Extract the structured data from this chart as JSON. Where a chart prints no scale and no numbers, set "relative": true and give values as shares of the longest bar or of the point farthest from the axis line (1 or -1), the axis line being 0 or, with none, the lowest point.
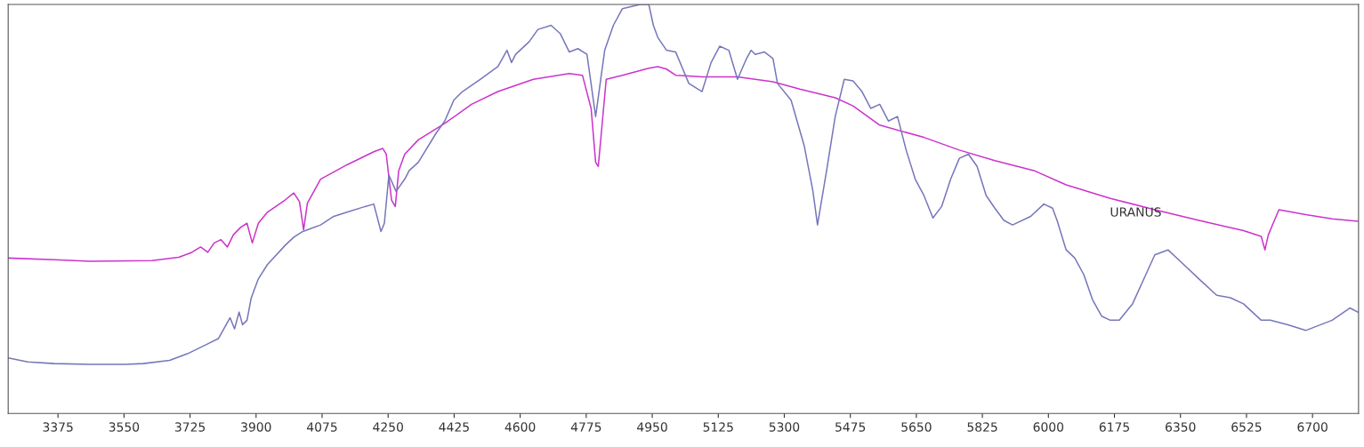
{
  "chart_data": {
    "type": "line",
    "relative": true,
    "xlim": [
      3243,
      6822
    ],
    "xticks": [
      3375,
      3550,
      3725,
      3900,
      4075,
      4250,
      4425,
      4600,
      4775,
      4950,
      5125,
      5300,
      5475,
      5650,
      5825,
      6000,
      6175,
      6350,
      6525,
      6700
    ],
    "grid": false,
    "legend": false,
    "marker": "none",
    "line_style": "solid",
    "series": [
      {
        "color": "#cc33cc",
        "x": [
          3243,
          3365,
          3459,
          3624,
          3695,
          3730,
          3753,
          3772,
          3789,
          3807,
          3824,
          3840,
          3859,
          3876,
          3890,
          3906,
          3930,
          3977,
          4000,
          4015,
          4026,
          4036,
          4071,
          4141,
          4212,
          4236,
          4245,
          4259,
          4269,
          4278,
          4294,
          4330,
          4400,
          4471,
          4541,
          4635,
          4730,
          4765,
          4788,
          4800,
          4807,
          4817,
          4828,
          4871,
          4941,
          4965,
          4988,
          5012,
          5082,
          5176,
          5270,
          5341,
          5435,
          5482,
          5553,
          5670,
          5764,
          5858,
          5964,
          6047,
          6164,
          6282,
          6399,
          6517,
          6564,
          6574,
          6583,
          6611,
          6682,
          6752,
          6820
        ],
        "values": [
          0.38,
          0.376,
          0.372,
          0.374,
          0.382,
          0.394,
          0.407,
          0.394,
          0.417,
          0.425,
          0.407,
          0.437,
          0.455,
          0.465,
          0.417,
          0.465,
          0.492,
          0.522,
          0.539,
          0.518,
          0.449,
          0.514,
          0.573,
          0.608,
          0.64,
          0.648,
          0.634,
          0.522,
          0.506,
          0.593,
          0.634,
          0.669,
          0.709,
          0.756,
          0.787,
          0.817,
          0.831,
          0.827,
          0.746,
          0.614,
          0.604,
          0.705,
          0.817,
          0.827,
          0.844,
          0.848,
          0.842,
          0.827,
          0.823,
          0.823,
          0.811,
          0.793,
          0.772,
          0.752,
          0.705,
          0.675,
          0.644,
          0.618,
          0.593,
          0.559,
          0.526,
          0.498,
          0.472,
          0.447,
          0.433,
          0.4,
          0.437,
          0.498,
          0.486,
          0.476,
          0.47
        ]
      },
      {
        "name": "URANUS",
        "color": "#7777bb",
        "x": [
          3243,
          3295,
          3365,
          3459,
          3553,
          3601,
          3671,
          3718,
          3765,
          3800,
          3831,
          3843,
          3855,
          3864,
          3876,
          3887,
          3906,
          3930,
          3977,
          4000,
          4024,
          4071,
          4106,
          4141,
          4189,
          4212,
          4231,
          4240,
          4252,
          4271,
          4294,
          4306,
          4330,
          4377,
          4400,
          4424,
          4447,
          4494,
          4541,
          4565,
          4577,
          4588,
          4624,
          4647,
          4682,
          4706,
          4730,
          4753,
          4777,
          4800,
          4824,
          4847,
          4871,
          4918,
          4941,
          4953,
          4965,
          4988,
          5012,
          5047,
          5082,
          5106,
          5129,
          5153,
          5176,
          5200,
          5212,
          5223,
          5247,
          5270,
          5282,
          5318,
          5353,
          5376,
          5388,
          5412,
          5435,
          5459,
          5482,
          5506,
          5529,
          5553,
          5576,
          5600,
          5623,
          5647,
          5670,
          5694,
          5717,
          5741,
          5764,
          5788,
          5811,
          5835,
          5858,
          5882,
          5905,
          5953,
          5988,
          6011,
          6023,
          6047,
          6070,
          6094,
          6117,
          6141,
          6164,
          6188,
          6223,
          6258,
          6282,
          6317,
          6352,
          6399,
          6446,
          6482,
          6517,
          6564,
          6588,
          6635,
          6682,
          6752,
          6799,
          6820
        ],
        "values": [
          0.136,
          0.126,
          0.122,
          0.12,
          0.12,
          0.122,
          0.13,
          0.146,
          0.167,
          0.183,
          0.234,
          0.207,
          0.248,
          0.217,
          0.228,
          0.282,
          0.329,
          0.364,
          0.411,
          0.431,
          0.445,
          0.461,
          0.482,
          0.492,
          0.506,
          0.512,
          0.445,
          0.465,
          0.583,
          0.543,
          0.573,
          0.594,
          0.614,
          0.685,
          0.715,
          0.766,
          0.787,
          0.817,
          0.848,
          0.888,
          0.858,
          0.878,
          0.909,
          0.939,
          0.949,
          0.929,
          0.884,
          0.892,
          0.878,
          0.726,
          0.888,
          0.949,
          0.99,
          1.0,
          1.0,
          0.949,
          0.919,
          0.888,
          0.884,
          0.807,
          0.787,
          0.858,
          0.898,
          0.888,
          0.817,
          0.868,
          0.888,
          0.878,
          0.884,
          0.868,
          0.807,
          0.766,
          0.654,
          0.543,
          0.461,
          0.593,
          0.726,
          0.817,
          0.813,
          0.787,
          0.746,
          0.756,
          0.715,
          0.726,
          0.644,
          0.573,
          0.533,
          0.478,
          0.506,
          0.573,
          0.624,
          0.634,
          0.604,
          0.533,
          0.502,
          0.472,
          0.461,
          0.482,
          0.512,
          0.502,
          0.472,
          0.4,
          0.38,
          0.339,
          0.278,
          0.238,
          0.228,
          0.228,
          0.268,
          0.339,
          0.388,
          0.4,
          0.37,
          0.329,
          0.289,
          0.283,
          0.268,
          0.228,
          0.228,
          0.217,
          0.203,
          0.228,
          0.258,
          0.248
        ]
      }
    ]
  }
}
